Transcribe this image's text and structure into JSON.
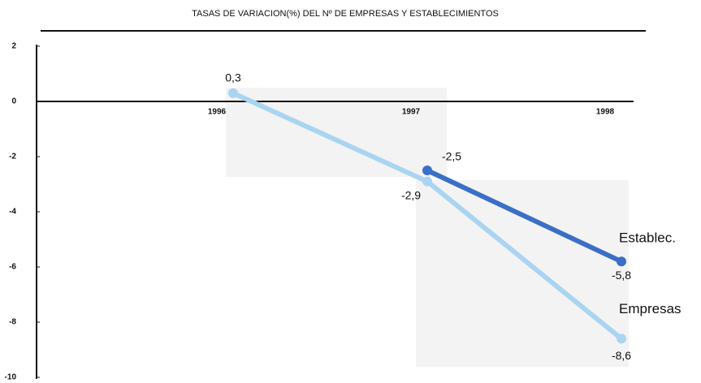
{
  "chart_data": {
    "type": "line",
    "title": "TASAS DE VARIACION(%) DEL Nº DE EMPRESAS Y ESTABLECIMIENTOS",
    "categories": [
      "1996",
      "1997",
      "1998"
    ],
    "series": [
      {
        "name": "Empresas",
        "color": "#a9d4f2",
        "values": [
          0.3,
          -2.9,
          -8.6
        ],
        "value_labels": [
          "0,3",
          "-2,9",
          "-8,6"
        ]
      },
      {
        "name": "Establec.",
        "color": "#3b6fc6",
        "values": [
          null,
          -2.5,
          -5.8
        ],
        "value_labels": [
          null,
          "-2,5",
          "-5,8"
        ]
      }
    ],
    "ylim": [
      -10,
      2
    ],
    "yticks": [
      2,
      0,
      -2,
      -4,
      -6,
      -8,
      -10
    ]
  }
}
